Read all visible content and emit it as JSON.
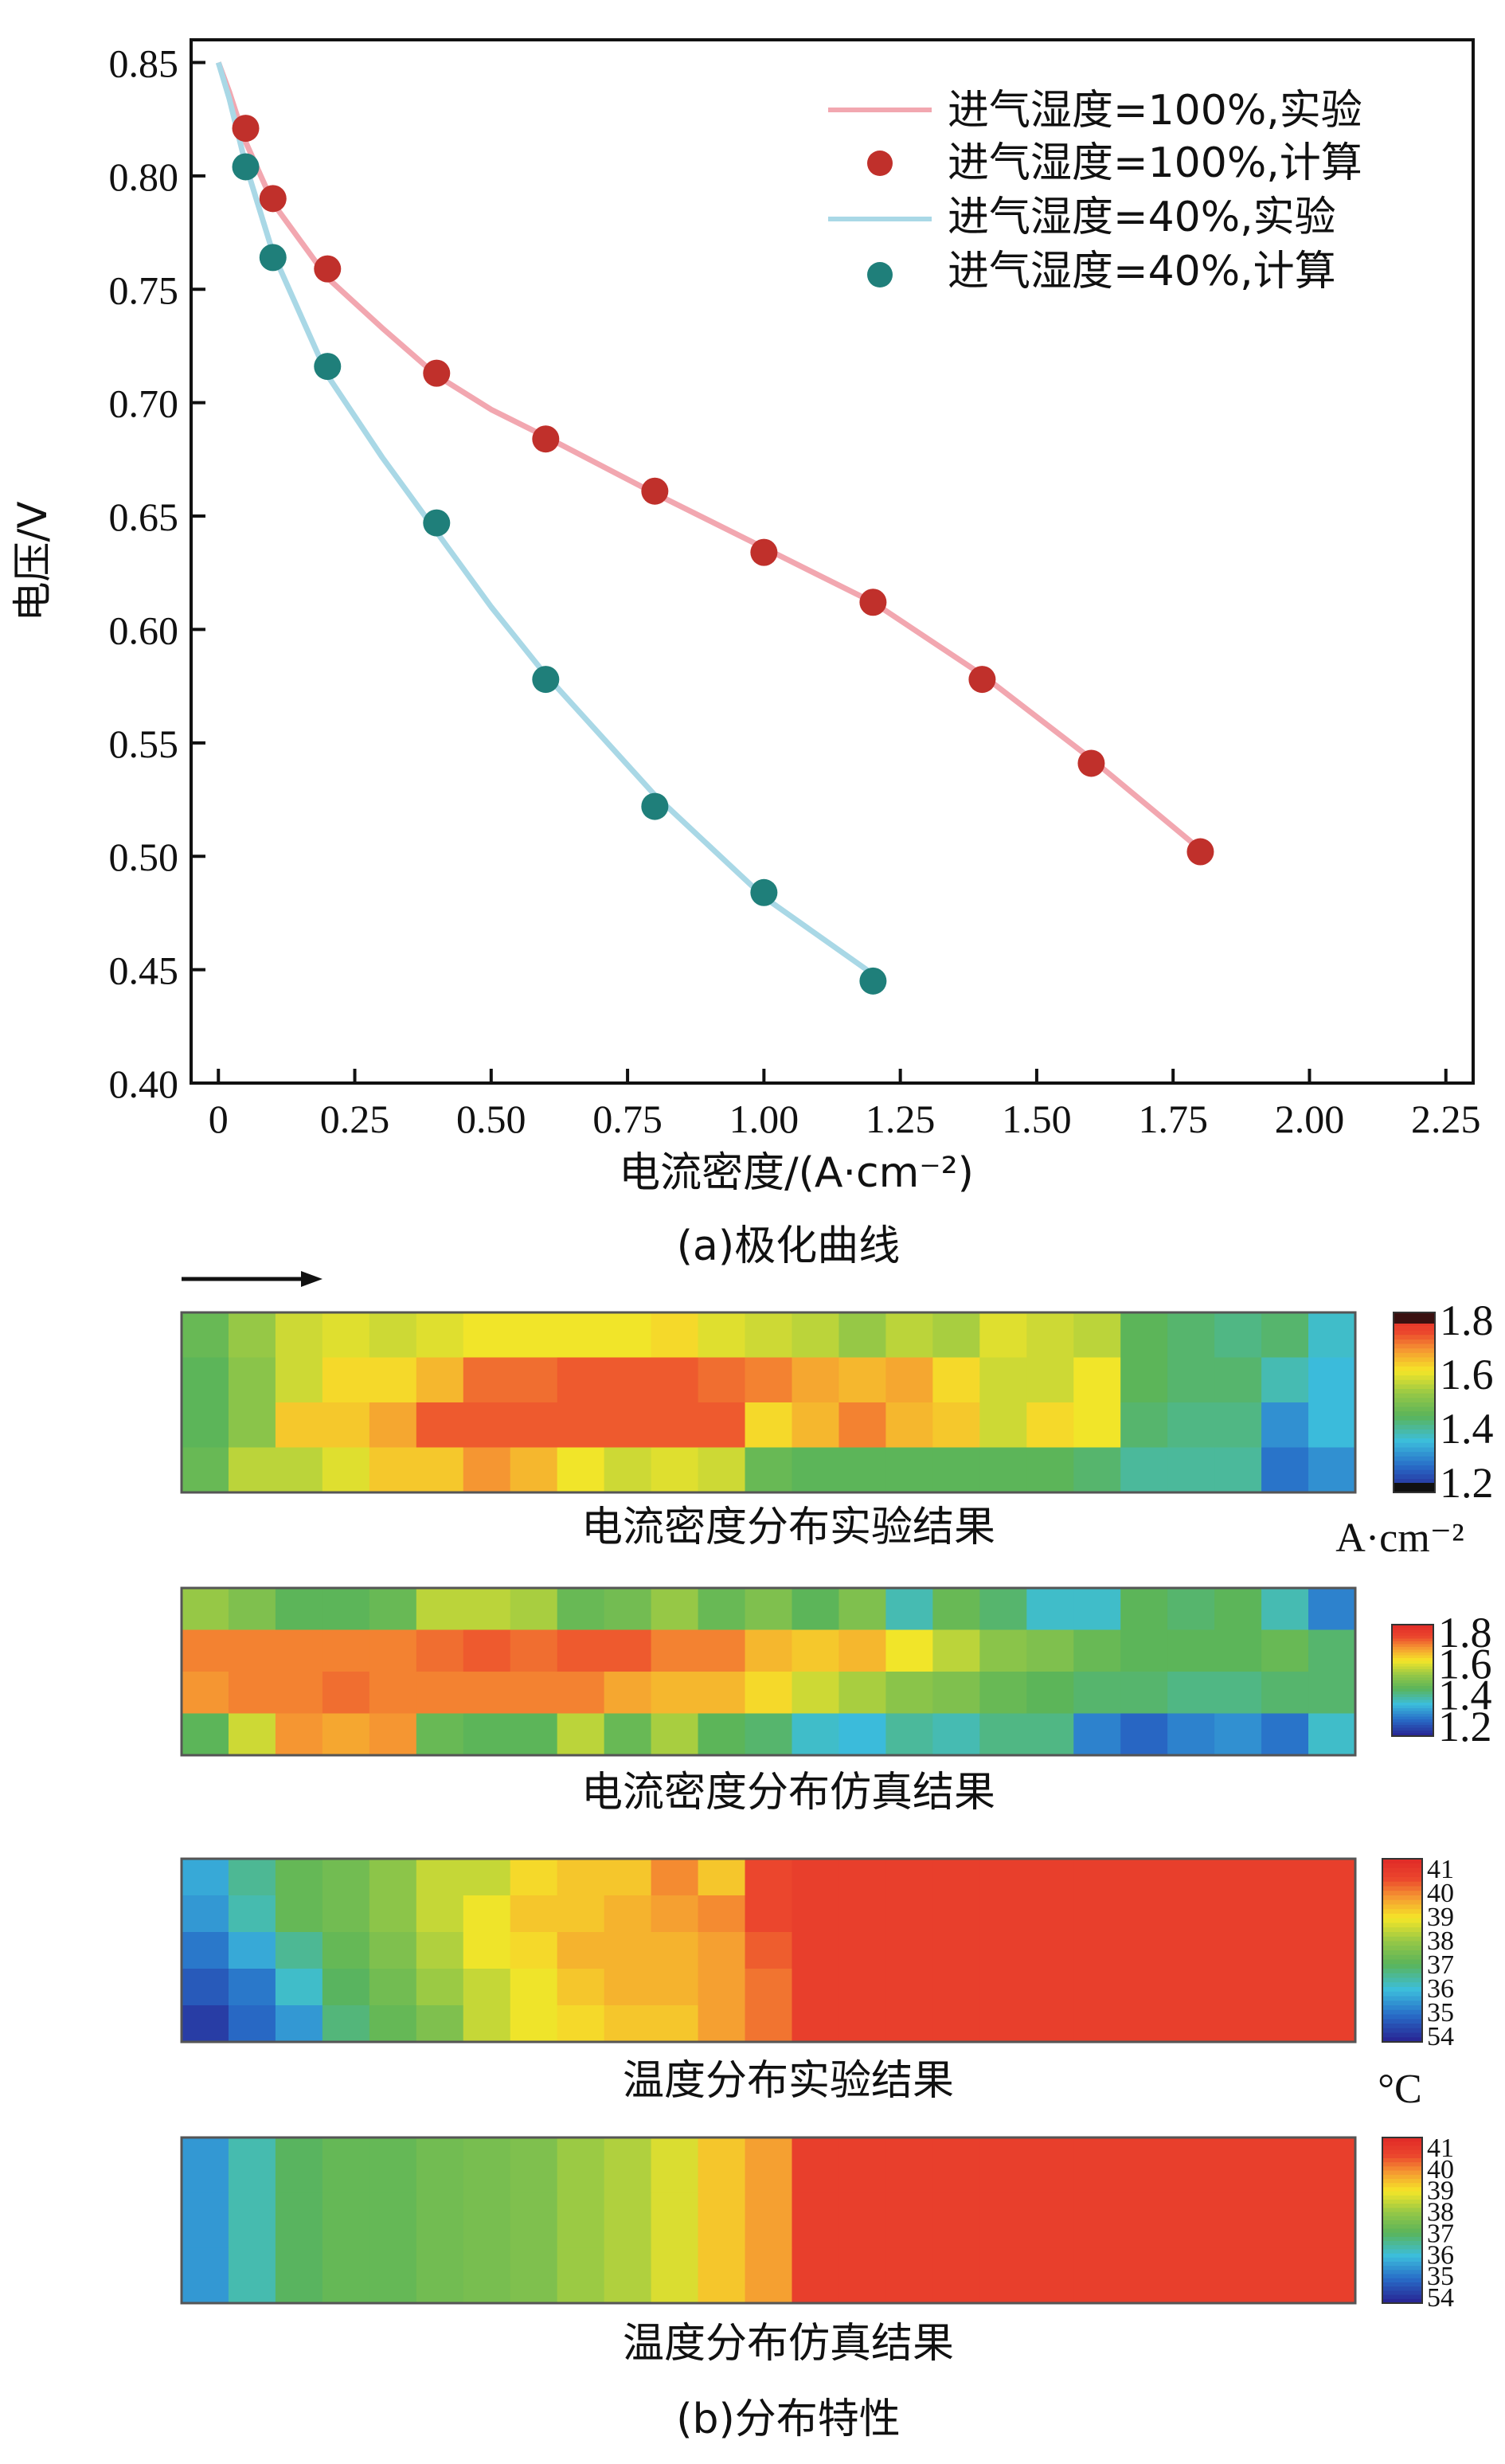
{
  "chart_data": [
    {
      "type": "line",
      "subtitle": "(a)极化曲线",
      "xlabel": "电流密度/(A·cm⁻²)",
      "ylabel": "电压/V",
      "xlim": [
        -0.05,
        2.3
      ],
      "ylim": [
        0.4,
        0.86
      ],
      "xticks": [
        "0",
        "0.25",
        "0.50",
        "0.75",
        "1.00",
        "1.25",
        "1.50",
        "1.75",
        "2.00",
        "2.25"
      ],
      "yticks": [
        "0.40",
        "0.45",
        "0.50",
        "0.55",
        "0.60",
        "0.65",
        "0.70",
        "0.75",
        "0.80",
        "0.85"
      ],
      "legend_position": "top-right",
      "series": [
        {
          "name": "进气湿度=100%,实验",
          "kind": "line",
          "color": "#f2a7b0",
          "x": [
            0.0,
            0.02,
            0.05,
            0.1,
            0.2,
            0.3,
            0.4,
            0.5,
            0.6,
            0.8,
            1.0,
            1.2,
            1.4,
            1.6,
            1.8
          ],
          "y": [
            0.85,
            0.837,
            0.815,
            0.788,
            0.755,
            0.733,
            0.712,
            0.697,
            0.685,
            0.66,
            0.636,
            0.612,
            0.58,
            0.543,
            0.503
          ]
        },
        {
          "name": "进气湿度=100%,计算",
          "kind": "scatter",
          "color": "#c0302b",
          "x": [
            0.05,
            0.1,
            0.2,
            0.4,
            0.6,
            0.8,
            1.0,
            1.2,
            1.4,
            1.6,
            1.8
          ],
          "y": [
            0.821,
            0.79,
            0.759,
            0.713,
            0.684,
            0.661,
            0.634,
            0.612,
            0.578,
            0.541,
            0.502
          ]
        },
        {
          "name": "进气湿度=40%,实验",
          "kind": "line",
          "color": "#a9d8e6",
          "x": [
            0.0,
            0.02,
            0.05,
            0.1,
            0.2,
            0.3,
            0.4,
            0.5,
            0.6,
            0.8,
            1.0,
            1.2
          ],
          "y": [
            0.85,
            0.834,
            0.805,
            0.766,
            0.712,
            0.676,
            0.643,
            0.61,
            0.58,
            0.527,
            0.482,
            0.448
          ]
        },
        {
          "name": "进气湿度=40%,计算",
          "kind": "scatter",
          "color": "#1f7f7a",
          "x": [
            0.05,
            0.1,
            0.2,
            0.4,
            0.6,
            0.8,
            1.0,
            1.2
          ],
          "y": [
            0.804,
            0.764,
            0.716,
            0.647,
            0.578,
            0.522,
            0.484,
            0.445
          ]
        }
      ]
    },
    {
      "type": "heatmap",
      "subtitle": "(b)分布特性",
      "panels": [
        {
          "caption": "电流密度分布实验结果",
          "unit": "A·cm⁻²",
          "colorbar_ticks": [
            "1.8",
            "1.6",
            "1.4",
            "1.2"
          ],
          "colorbar_range": [
            1.1,
            1.9
          ],
          "values": [
            [
              1.46,
              1.54,
              1.6,
              1.62,
              1.6,
              1.62,
              1.64,
              1.64,
              1.64,
              1.64,
              1.66,
              1.62,
              1.6,
              1.58,
              1.54,
              1.58,
              1.56,
              1.62,
              1.6,
              1.58,
              1.44,
              1.42,
              1.4,
              1.42,
              1.34
            ],
            [
              1.44,
              1.52,
              1.6,
              1.66,
              1.66,
              1.7,
              1.78,
              1.78,
              1.8,
              1.8,
              1.8,
              1.78,
              1.76,
              1.72,
              1.7,
              1.72,
              1.66,
              1.6,
              1.6,
              1.64,
              1.44,
              1.42,
              1.42,
              1.36,
              1.32
            ],
            [
              1.44,
              1.52,
              1.68,
              1.68,
              1.72,
              1.8,
              1.8,
              1.8,
              1.8,
              1.8,
              1.8,
              1.8,
              1.66,
              1.7,
              1.76,
              1.7,
              1.68,
              1.6,
              1.66,
              1.64,
              1.42,
              1.4,
              1.4,
              1.26,
              1.32
            ],
            [
              1.46,
              1.58,
              1.58,
              1.62,
              1.68,
              1.68,
              1.74,
              1.7,
              1.64,
              1.6,
              1.62,
              1.6,
              1.46,
              1.44,
              1.44,
              1.44,
              1.44,
              1.44,
              1.44,
              1.42,
              1.38,
              1.38,
              1.38,
              1.22,
              1.26
            ]
          ]
        },
        {
          "caption": "电流密度分布仿真结果",
          "colorbar_ticks": [
            "1.8",
            "1.6",
            "1.4",
            "1.2"
          ],
          "colorbar_range": [
            1.1,
            1.9
          ],
          "values": [
            [
              1.54,
              1.5,
              1.44,
              1.44,
              1.46,
              1.58,
              1.58,
              1.56,
              1.46,
              1.48,
              1.54,
              1.46,
              1.5,
              1.44,
              1.5,
              1.36,
              1.46,
              1.42,
              1.34,
              1.34,
              1.44,
              1.42,
              1.44,
              1.36,
              1.24
            ],
            [
              1.76,
              1.76,
              1.76,
              1.76,
              1.76,
              1.78,
              1.8,
              1.78,
              1.8,
              1.8,
              1.76,
              1.76,
              1.7,
              1.68,
              1.7,
              1.64,
              1.58,
              1.52,
              1.5,
              1.46,
              1.44,
              1.44,
              1.44,
              1.46,
              1.42
            ],
            [
              1.74,
              1.76,
              1.76,
              1.78,
              1.76,
              1.76,
              1.76,
              1.76,
              1.76,
              1.72,
              1.7,
              1.7,
              1.66,
              1.6,
              1.56,
              1.52,
              1.5,
              1.46,
              1.44,
              1.42,
              1.42,
              1.4,
              1.4,
              1.42,
              1.42
            ],
            [
              1.44,
              1.6,
              1.74,
              1.72,
              1.74,
              1.46,
              1.44,
              1.44,
              1.58,
              1.46,
              1.56,
              1.44,
              1.42,
              1.34,
              1.32,
              1.38,
              1.36,
              1.4,
              1.4,
              1.24,
              1.2,
              1.24,
              1.26,
              1.22,
              1.34
            ]
          ]
        },
        {
          "caption": "温度分布实验结果",
          "unit": "°C",
          "colorbar_ticks": [
            "41",
            "40",
            "39",
            "38",
            "37",
            "36",
            "35",
            "54"
          ],
          "colorbar_range": [
            34.5,
            41.5
          ],
          "values": [
            [
              36.2,
              37.0,
              37.6,
              37.8,
              38.2,
              38.8,
              38.8,
              39.4,
              39.6,
              39.6,
              40.2,
              39.6,
              40.8,
              41,
              41,
              41,
              41,
              41,
              41,
              41,
              41,
              41,
              41,
              41,
              41
            ],
            [
              36.0,
              36.8,
              37.6,
              37.8,
              38.2,
              38.8,
              39.2,
              39.6,
              39.6,
              39.8,
              40.0,
              40.2,
              40.8,
              41,
              41,
              41,
              41,
              41,
              41,
              41,
              41,
              41,
              41,
              41,
              41
            ],
            [
              35.6,
              36.2,
              37.0,
              37.6,
              38.0,
              38.6,
              39.2,
              39.4,
              39.8,
              39.8,
              39.8,
              40.0,
              40.6,
              41,
              41,
              41,
              41,
              41,
              41,
              41,
              41,
              41,
              41,
              41,
              41
            ],
            [
              35.2,
              35.6,
              36.6,
              37.4,
              37.8,
              38.4,
              38.8,
              39.2,
              39.6,
              39.8,
              39.8,
              40.0,
              40.4,
              41,
              41,
              41,
              41,
              41,
              41,
              41,
              41,
              41,
              41,
              41,
              41
            ],
            [
              34.8,
              35.4,
              36.0,
              37.2,
              37.6,
              38.0,
              38.8,
              39.2,
              39.4,
              39.6,
              39.6,
              40.0,
              40.4,
              41,
              41,
              41,
              41,
              41,
              41,
              41,
              41,
              41,
              41,
              41,
              41
            ]
          ]
        },
        {
          "caption": "温度分布仿真结果",
          "colorbar_ticks": [
            "41",
            "40",
            "39",
            "38",
            "37",
            "36",
            "35",
            "54"
          ],
          "colorbar_range": [
            34.5,
            41.5
          ],
          "values": [
            [
              36.0,
              36.8,
              37.4,
              37.6,
              37.6,
              37.8,
              37.9,
              38.0,
              38.4,
              38.6,
              39.0,
              39.6,
              40.0,
              41,
              41,
              41,
              41,
              41,
              41,
              41,
              41,
              41,
              41,
              41,
              41
            ],
            [
              36.0,
              36.8,
              37.4,
              37.6,
              37.6,
              37.8,
              37.9,
              38.0,
              38.4,
              38.6,
              39.0,
              39.6,
              40.0,
              41,
              41,
              41,
              41,
              41,
              41,
              41,
              41,
              41,
              41,
              41,
              41
            ],
            [
              36.0,
              36.8,
              37.4,
              37.6,
              37.6,
              37.8,
              37.9,
              38.0,
              38.4,
              38.6,
              39.0,
              39.6,
              40.0,
              41,
              41,
              41,
              41,
              41,
              41,
              41,
              41,
              41,
              41,
              41,
              41
            ]
          ]
        }
      ]
    }
  ]
}
